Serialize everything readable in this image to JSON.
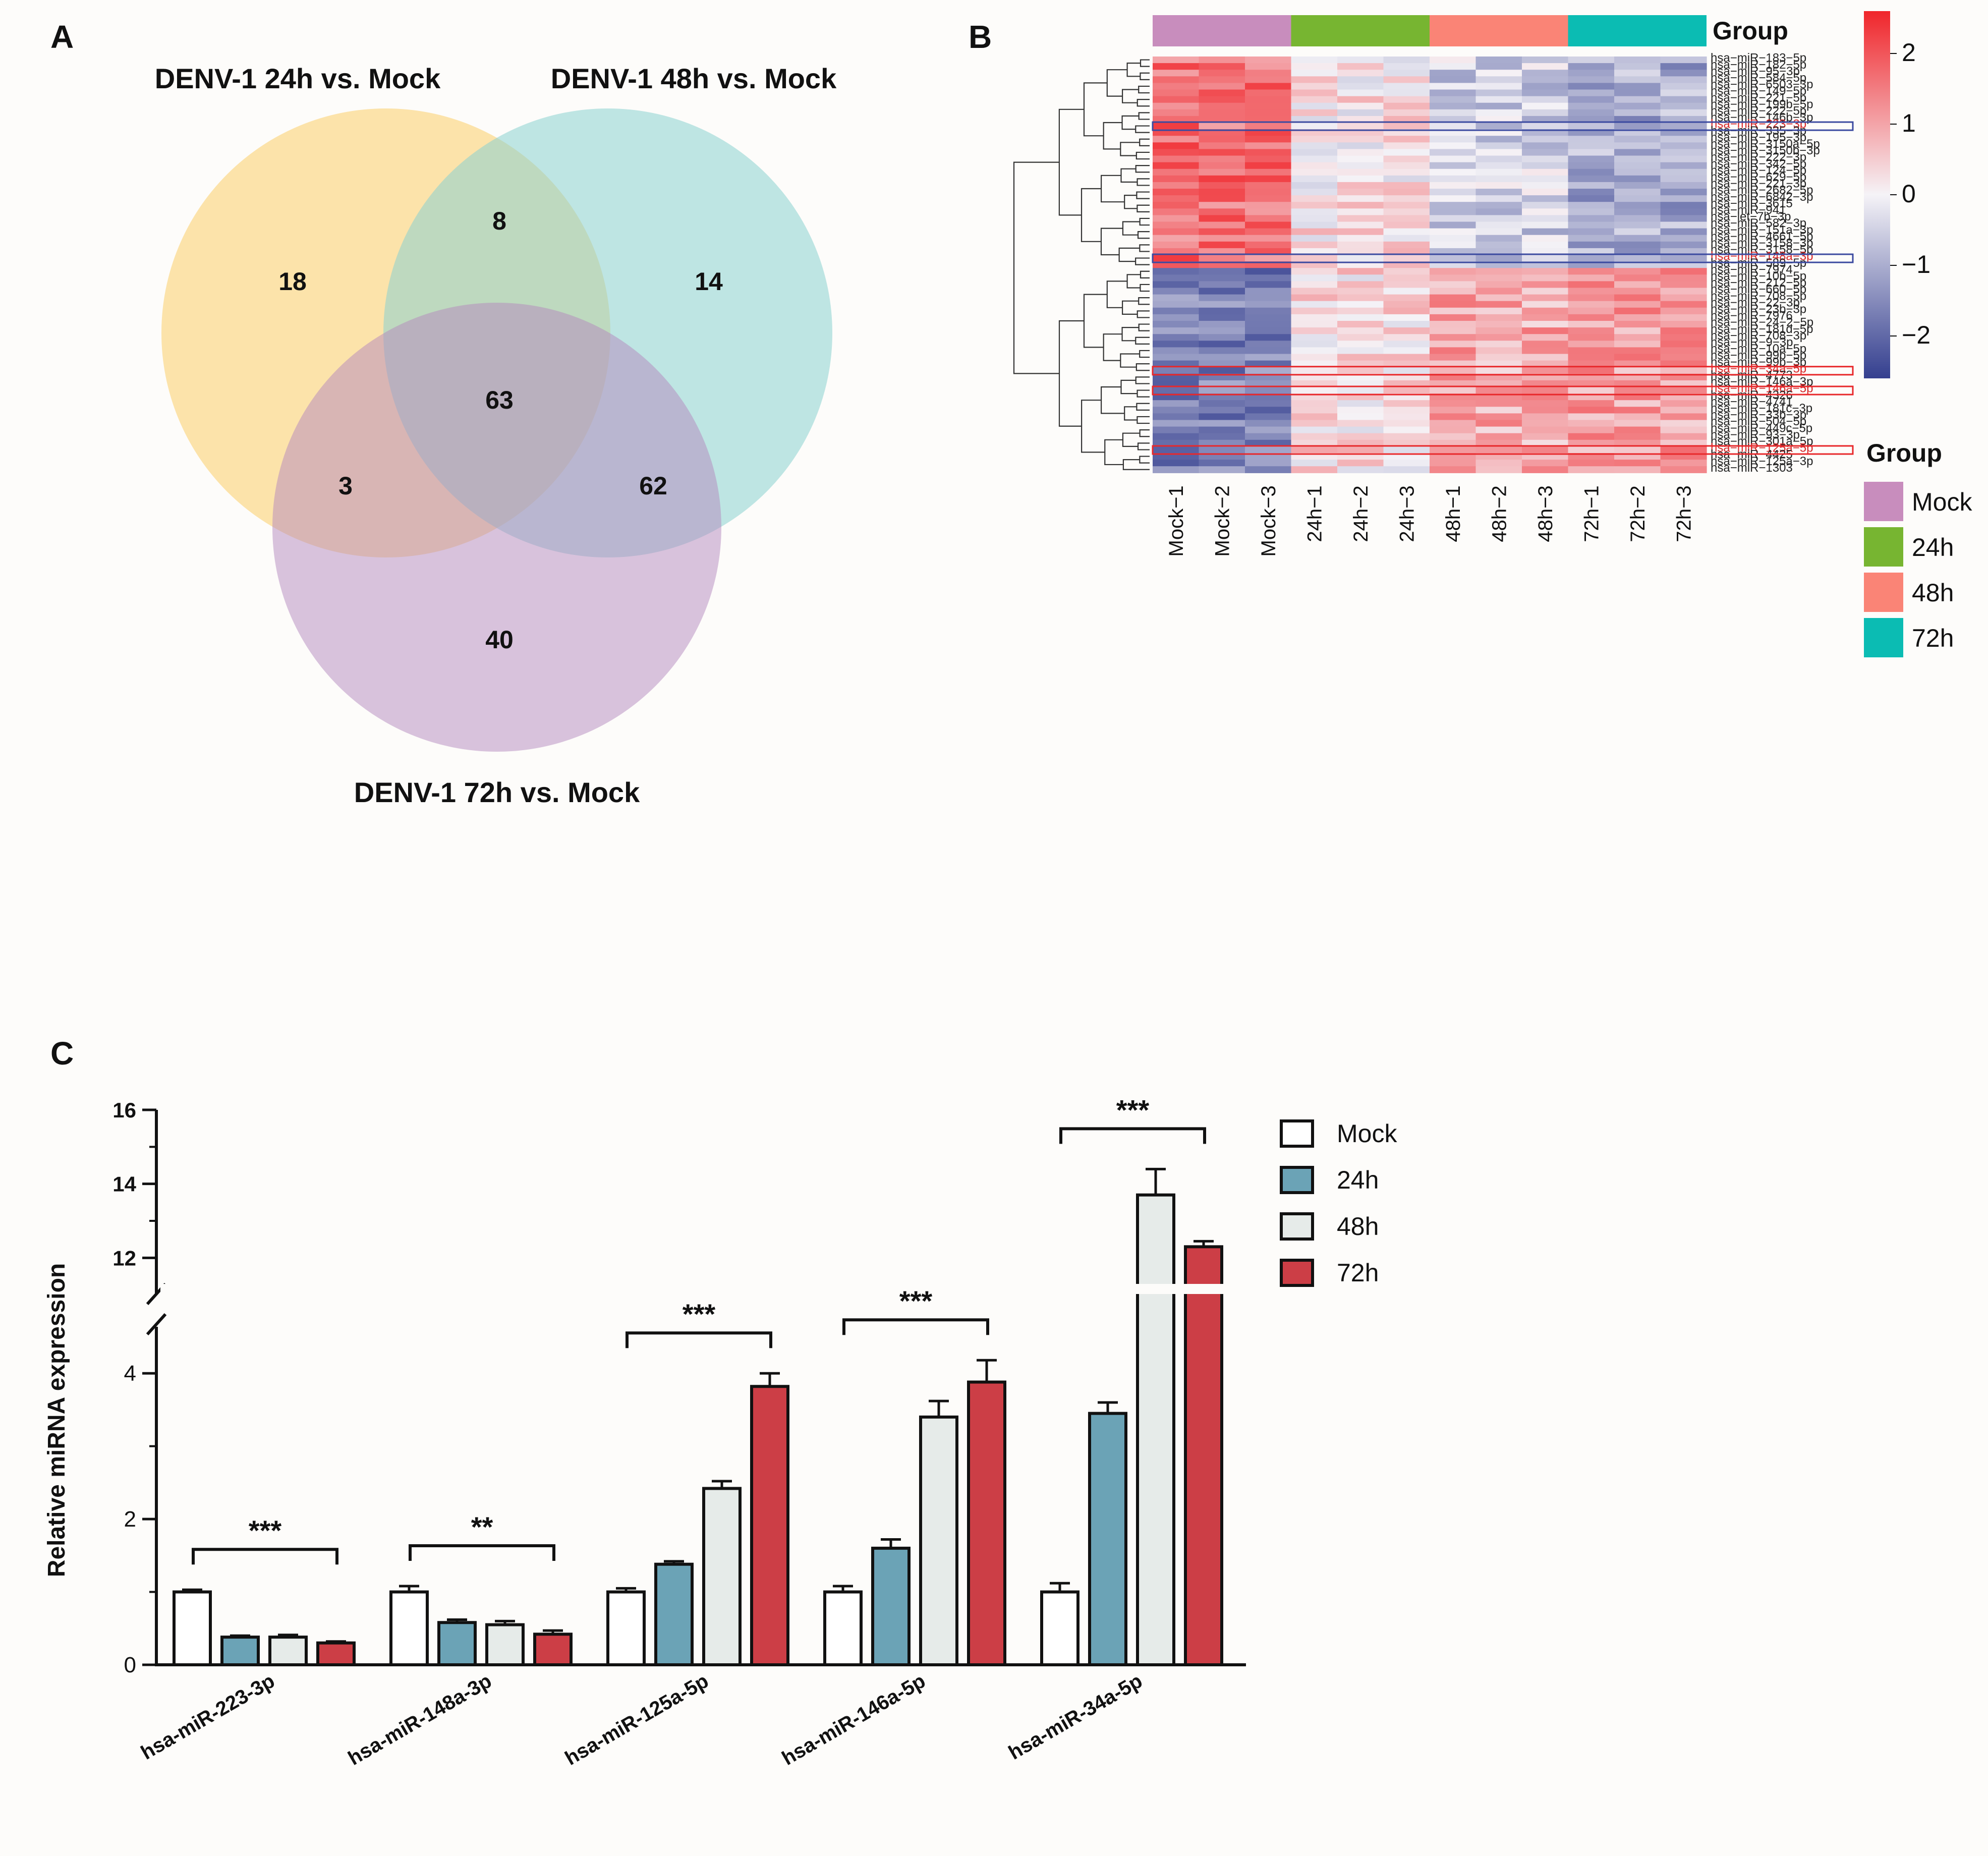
{
  "panels": {
    "a": "A",
    "b": "B",
    "c": "C"
  },
  "venn": {
    "sets": [
      {
        "label": "DENV-1 24h vs. Mock",
        "color": "#fcd680"
      },
      {
        "label": "DENV-1 48h vs. Mock",
        "color": "#8ad2cf"
      },
      {
        "label": "DENV-1 72h vs. Mock",
        "color": "#b487bd"
      }
    ],
    "regions": {
      "only_24h": "18",
      "only_48h": "14",
      "only_72h": "40",
      "h24_h48": "8",
      "h24_h72": "3",
      "h48_h72": "62",
      "all": "63"
    }
  },
  "heatmap": {
    "groups": [
      {
        "name": "Mock",
        "color": "#c88dbd"
      },
      {
        "name": "24h",
        "color": "#77b531"
      },
      {
        "name": "48h",
        "color": "#fa8476"
      },
      {
        "name": "72h",
        "color": "#0bbcb3"
      }
    ],
    "group_label": "Group",
    "samples": [
      "Mock−1",
      "Mock−2",
      "Mock−3",
      "24h−1",
      "24h−2",
      "24h−3",
      "48h−1",
      "48h−2",
      "48h−3",
      "72h−1",
      "72h−2",
      "72h−3"
    ],
    "colorbar": {
      "ticks": [
        "2",
        "1",
        "0",
        "−1",
        "−2"
      ],
      "low": "#343f8f",
      "mid": "#f5f3f7",
      "high": "#f0262b"
    },
    "highlight_colors": {
      "down": "#3b4aa0",
      "up": "#e8282b"
    },
    "rows": [
      {
        "name": "hsa−miR−183−5p",
        "pattern": "A"
      },
      {
        "name": "hsa−miR−182−5p",
        "pattern": "A"
      },
      {
        "name": "hsa−miR−95−3p",
        "pattern": "A"
      },
      {
        "name": "hsa−miR−584−5p",
        "pattern": "A"
      },
      {
        "name": "hsa−miR−6503−3p",
        "pattern": "A"
      },
      {
        "name": "hsa−miR−149−5p",
        "pattern": "A"
      },
      {
        "name": "hsa−miR−221−5p",
        "pattern": "A"
      },
      {
        "name": "hsa−miR−199b−5p",
        "pattern": "A"
      },
      {
        "name": "hsa−miR−222−5p",
        "pattern": "A"
      },
      {
        "name": "hsa−miR−146b−3p",
        "pattern": "A"
      },
      {
        "name": "hsa−miR−223−3p",
        "pattern": "A",
        "highlight": "down"
      },
      {
        "name": "hsa−miR−335−3p",
        "pattern": "A"
      },
      {
        "name": "hsa−miR−195−3p",
        "pattern": "A"
      },
      {
        "name": "hsa−miR−3150a−5p",
        "pattern": "A"
      },
      {
        "name": "hsa−miR−3150b−3p",
        "pattern": "A"
      },
      {
        "name": "hsa−miR−222−3p",
        "pattern": "A"
      },
      {
        "name": "hsa−miR−342−5p",
        "pattern": "A"
      },
      {
        "name": "hsa−miR−124−5p",
        "pattern": "A"
      },
      {
        "name": "hsa−miR−629−5p",
        "pattern": "A"
      },
      {
        "name": "hsa−miR−221−3p",
        "pattern": "A"
      },
      {
        "name": "hsa−miR−2682−5p",
        "pattern": "A"
      },
      {
        "name": "hsa−miR−6842−3p",
        "pattern": "A"
      },
      {
        "name": "hsa−miR−3615",
        "pattern": "A"
      },
      {
        "name": "hsa−miR−941",
        "pattern": "A"
      },
      {
        "name": "hsa−let−7b−3p",
        "pattern": "A"
      },
      {
        "name": "hsa−miR−582−3p",
        "pattern": "A"
      },
      {
        "name": "hsa−miR−151a−3p",
        "pattern": "A"
      },
      {
        "name": "hsa−miR−4661−5p",
        "pattern": "A"
      },
      {
        "name": "hsa−miR−3158−3p",
        "pattern": "A"
      },
      {
        "name": "hsa−miR−3158−5p",
        "pattern": "A"
      },
      {
        "name": "hsa−miR−148a−3p",
        "pattern": "A",
        "highlight": "down"
      },
      {
        "name": "hsa−miR−589−5p",
        "pattern": "A"
      },
      {
        "name": "hsa−miR−7974",
        "pattern": "B"
      },
      {
        "name": "hsa−miR−10b−5p",
        "pattern": "B"
      },
      {
        "name": "hsa−miR−212−5p",
        "pattern": "B"
      },
      {
        "name": "hsa−miR−660−5p",
        "pattern": "B"
      },
      {
        "name": "hsa−miR−708−5p",
        "pattern": "B"
      },
      {
        "name": "hsa−miR−22−3p",
        "pattern": "B"
      },
      {
        "name": "hsa−miR−23b−3p",
        "pattern": "B"
      },
      {
        "name": "hsa−miR−7976",
        "pattern": "B"
      },
      {
        "name": "hsa−miR−24−2−5p",
        "pattern": "B"
      },
      {
        "name": "hsa−miR−181d−5p",
        "pattern": "B"
      },
      {
        "name": "hsa−miR−708−3p",
        "pattern": "B"
      },
      {
        "name": "hsa−miR−9−3p",
        "pattern": "B"
      },
      {
        "name": "hsa−miR−10a−5p",
        "pattern": "B"
      },
      {
        "name": "hsa−miR−99b−5p",
        "pattern": "B"
      },
      {
        "name": "hsa−miR−99b−3p",
        "pattern": "B"
      },
      {
        "name": "hsa−miR−34a−5p",
        "pattern": "B",
        "highlight": "up"
      },
      {
        "name": "hsa−miR−4773",
        "pattern": "B"
      },
      {
        "name": "hsa−miR−146a−3p",
        "pattern": "B"
      },
      {
        "name": "hsa−miR−146a−5p",
        "pattern": "B",
        "highlight": "up"
      },
      {
        "name": "hsa−miR−4326",
        "pattern": "B"
      },
      {
        "name": "hsa−miR−4741",
        "pattern": "B"
      },
      {
        "name": "hsa−miR−181c−3p",
        "pattern": "B"
      },
      {
        "name": "hsa−miR−33b−3p",
        "pattern": "B"
      },
      {
        "name": "hsa−miR−504−5p",
        "pattern": "B"
      },
      {
        "name": "hsa−miR−449c−5p",
        "pattern": "B"
      },
      {
        "name": "hsa−miR−93−3p",
        "pattern": "B"
      },
      {
        "name": "hsa−miR−301a−5p",
        "pattern": "B"
      },
      {
        "name": "hsa−miR−125a−5p",
        "pattern": "B",
        "highlight": "up"
      },
      {
        "name": "hsa−miR−4425",
        "pattern": "B"
      },
      {
        "name": "hsa−miR−125a−3p",
        "pattern": "B"
      },
      {
        "name": "hsa−miR−1303",
        "pattern": "B"
      }
    ]
  },
  "chart_data": {
    "type": "bar",
    "ylabel": "Relative miRNA expression",
    "categories": [
      "hsa-miR-223-3p",
      "hsa-miR-148a-3p",
      "hsa-miR-125a-5p",
      "hsa-miR-146a-5p",
      "hsa-miR-34a-5p"
    ],
    "series": [
      {
        "name": "Mock",
        "color": "#ffffff",
        "values": [
          1.0,
          1.0,
          1.0,
          1.0,
          1.0
        ],
        "errors": [
          0.03,
          0.08,
          0.05,
          0.08,
          0.12
        ]
      },
      {
        "name": "24h",
        "color": "#6ba3b6",
        "values": [
          0.38,
          0.58,
          1.38,
          1.6,
          3.45
        ],
        "errors": [
          0.02,
          0.04,
          0.04,
          0.12,
          0.15
        ]
      },
      {
        "name": "48h",
        "color": "#e6ebe9",
        "values": [
          0.38,
          0.55,
          2.42,
          3.4,
          13.7
        ],
        "errors": [
          0.03,
          0.05,
          0.1,
          0.22,
          0.7
        ]
      },
      {
        "name": "72h",
        "color": "#cc3e46",
        "values": [
          0.3,
          0.42,
          3.82,
          3.88,
          12.3
        ],
        "errors": [
          0.02,
          0.05,
          0.18,
          0.3,
          0.15
        ]
      }
    ],
    "significance": [
      "***",
      "**",
      "***",
      "***",
      "***"
    ],
    "yaxis": {
      "break": [
        4.5,
        11.5
      ],
      "lower_range": [
        0,
        4.5
      ],
      "lower_ticks": [
        "0",
        "2",
        "4"
      ],
      "upper_range": [
        11.5,
        16
      ],
      "upper_ticks": [
        "12",
        "14",
        "16"
      ]
    }
  }
}
